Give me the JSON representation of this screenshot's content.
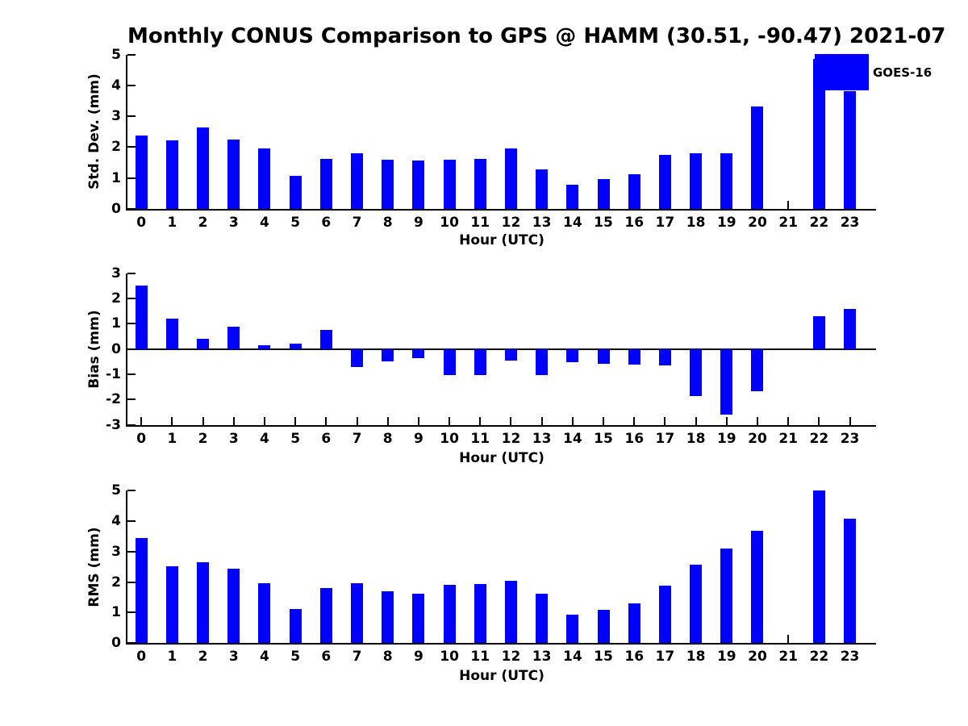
{
  "title": "Monthly CONUS Comparison to GPS @ HAMM (30.51, -90.47) 2021-07",
  "figure": {
    "background": "#ffffff"
  },
  "colors": {
    "bar": "#0000ff",
    "axis": "#000000",
    "text": "#000000"
  },
  "chart_data": [
    {
      "type": "bar",
      "name": "std-dev-by-hour",
      "ylabel": "Std. Dev. (mm)",
      "xlabel": "Hour (UTC)",
      "categories": [
        0,
        1,
        2,
        3,
        4,
        5,
        6,
        7,
        8,
        9,
        10,
        11,
        12,
        13,
        14,
        15,
        16,
        17,
        18,
        19,
        20,
        21,
        22,
        23
      ],
      "values": [
        2.38,
        2.21,
        2.63,
        2.26,
        1.95,
        1.07,
        1.62,
        1.8,
        1.58,
        1.57,
        1.6,
        1.61,
        1.97,
        1.28,
        0.77,
        0.95,
        1.12,
        1.76,
        1.81,
        1.81,
        3.31,
        null,
        4.87,
        3.83
      ],
      "ylim": [
        0,
        5
      ],
      "yticks": [
        0,
        1,
        2,
        3,
        4,
        5
      ],
      "xlim": [
        -0.45,
        23.85
      ],
      "grid": false,
      "legend": {
        "label": "GOES-16",
        "position": "upper right"
      }
    },
    {
      "type": "bar",
      "name": "bias-by-hour",
      "ylabel": "Bias (mm)",
      "xlabel": "Hour (UTC)",
      "categories": [
        0,
        1,
        2,
        3,
        4,
        5,
        6,
        7,
        8,
        9,
        10,
        11,
        12,
        13,
        14,
        15,
        16,
        17,
        18,
        19,
        20,
        21,
        22,
        23
      ],
      "values": [
        2.5,
        1.2,
        0.4,
        0.9,
        0.15,
        0.22,
        0.77,
        -0.72,
        -0.5,
        -0.37,
        -1.02,
        -1.02,
        -0.47,
        -1.03,
        -0.52,
        -0.57,
        -0.63,
        -0.65,
        -1.87,
        -2.6,
        -1.66,
        null,
        1.29,
        1.58
      ],
      "ylim": [
        -3,
        3
      ],
      "yticks": [
        -3,
        -2,
        -1,
        0,
        1,
        2,
        3
      ],
      "xlim": [
        -0.45,
        23.85
      ],
      "grid": false,
      "zero_line": true
    },
    {
      "type": "bar",
      "name": "rms-by-hour",
      "ylabel": "RMS (mm)",
      "xlabel": "Hour (UTC)",
      "categories": [
        0,
        1,
        2,
        3,
        4,
        5,
        6,
        7,
        8,
        9,
        10,
        11,
        12,
        13,
        14,
        15,
        16,
        17,
        18,
        19,
        20,
        21,
        22,
        23
      ],
      "values": [
        3.45,
        2.52,
        2.65,
        2.45,
        1.95,
        1.12,
        1.8,
        1.95,
        1.7,
        1.62,
        1.9,
        1.93,
        2.03,
        1.63,
        0.92,
        1.1,
        1.29,
        1.88,
        2.57,
        3.1,
        3.69,
        null,
        5.0,
        4.08
      ],
      "ylim": [
        0,
        5
      ],
      "yticks": [
        0,
        1,
        2,
        3,
        4,
        5
      ],
      "xlim": [
        -0.45,
        23.85
      ],
      "grid": false
    }
  ]
}
